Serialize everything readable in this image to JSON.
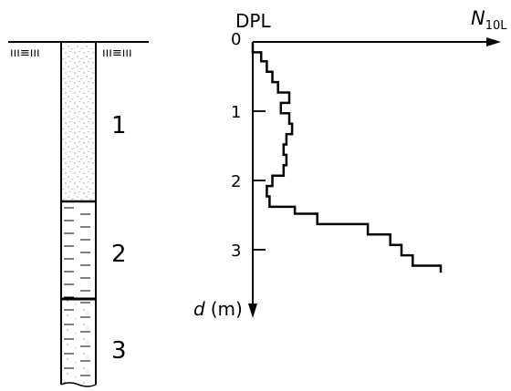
{
  "figure": {
    "method_label": "DPL",
    "x_axis_symbol": "N",
    "x_axis_subscript": "10L",
    "y_axis_symbol": "d",
    "y_axis_unit": "(m)",
    "ground_symbol_left": "ııı≡ııı",
    "ground_symbol_right": "ııı≡ııı",
    "layers": [
      {
        "label": "1",
        "soil": "sand"
      },
      {
        "label": "2",
        "soil": "clay"
      },
      {
        "label": "3",
        "soil": "silty sand"
      }
    ]
  },
  "chart_data": {
    "type": "line",
    "title": "",
    "xlabel": "N10L",
    "ylabel": "d (m)",
    "ylim": [
      0,
      3.5
    ],
    "y_ticks": [
      "0",
      "1",
      "2",
      "3"
    ],
    "y_direction": "down",
    "grid": false,
    "series": [
      {
        "d": [
          0,
          0.15,
          0.15,
          0.28,
          0.28,
          0.43,
          0.43,
          0.58,
          0.58,
          0.73,
          0.73,
          0.88,
          0.88,
          1.03,
          1.03,
          1.18,
          1.18,
          1.33,
          1.33,
          1.48,
          1.48,
          1.63,
          1.63,
          1.78,
          1.78,
          1.93,
          1.93,
          2.08,
          2.08,
          2.23,
          2.23,
          2.38,
          2.38,
          2.48,
          2.48,
          2.63,
          2.63,
          2.78,
          2.78,
          2.93,
          2.93,
          3.08,
          3.08,
          3.23,
          3.23,
          3.33
        ],
        "n": [
          0,
          0,
          1.5,
          1.5,
          2.5,
          2.5,
          3.5,
          3.5,
          4.5,
          4.5,
          6.5,
          6.5,
          5,
          5,
          6.5,
          6.5,
          7,
          7,
          6,
          6,
          5.5,
          5.5,
          6,
          6,
          5.5,
          5.5,
          3.5,
          3.5,
          2.5,
          2.5,
          3,
          3,
          7.5,
          7.5,
          11.5,
          11.5,
          20.5,
          20.5,
          24.5,
          24.5,
          26.5,
          26.5,
          28.5,
          28.5,
          33.5,
          33.5
        ]
      }
    ]
  }
}
